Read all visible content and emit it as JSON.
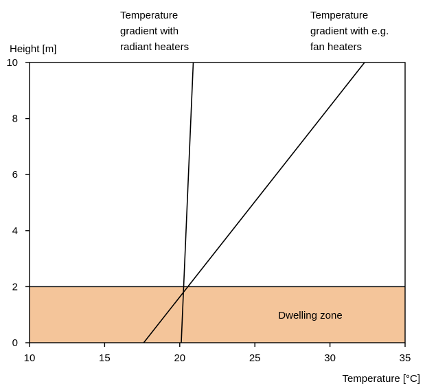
{
  "chart_data": {
    "type": "line",
    "xlabel": "Temperature  [°C]",
    "ylabel": "Height [m]",
    "xlim": [
      10,
      35
    ],
    "ylim": [
      0,
      10
    ],
    "x_ticks": [
      "10",
      "15",
      "20",
      "25",
      "30",
      "35"
    ],
    "y_ticks": [
      "0",
      "2",
      "4",
      "6",
      "8",
      "10"
    ],
    "grid": false,
    "series": [
      {
        "name": "Temperature gradient with radiant heaters",
        "label_lines": [
          "Temperature",
          "gradient with",
          "radiant heaters"
        ],
        "x": [
          20.1,
          20.9
        ],
        "y": [
          0,
          10
        ]
      },
      {
        "name": "Temperature gradient with e.g. fan heaters",
        "label_lines": [
          "Temperature",
          "gradient with e.g.",
          "fan heaters"
        ],
        "x": [
          17.6,
          32.3
        ],
        "y": [
          0,
          10
        ]
      }
    ],
    "zones": [
      {
        "label": "Dwelling zone",
        "y": [
          0,
          2
        ],
        "color": "#f4c59a"
      }
    ],
    "colors": {
      "line": "#000000",
      "zone": "#f4c59a"
    }
  }
}
